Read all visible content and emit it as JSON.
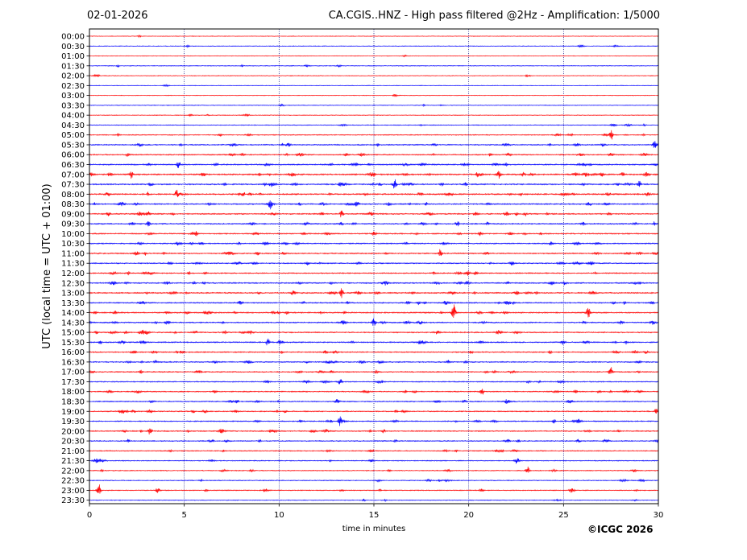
{
  "header": {
    "date": "02-01-2026",
    "title": "CA.CGIS..HNZ - High pass filtered @2Hz - Amplification: 1/5000"
  },
  "footer": {
    "copyright": "©ICGC 2026"
  },
  "colors": {
    "trace_a": "#ff0000",
    "trace_b": "#0000ff",
    "grid": "#000080",
    "axis": "#000000"
  },
  "chart_data": {
    "type": "line",
    "xlabel": "time in minutes",
    "ylabel": "UTC (local time = UTC + 01:00)",
    "xlim": [
      0,
      30
    ],
    "x_ticks": [
      0,
      5,
      10,
      15,
      20,
      25,
      30
    ],
    "x_tick_labels": [
      "0",
      "5",
      "10",
      "15",
      "20",
      "25",
      "30"
    ],
    "row_labels": [
      "00:00",
      "00:30",
      "01:00",
      "01:30",
      "02:00",
      "02:30",
      "03:00",
      "03:30",
      "04:00",
      "04:30",
      "05:00",
      "05:30",
      "06:00",
      "06:30",
      "07:00",
      "07:30",
      "08:00",
      "08:30",
      "09:00",
      "09:30",
      "10:00",
      "10:30",
      "11:00",
      "11:30",
      "12:00",
      "12:30",
      "13:00",
      "13:30",
      "14:00",
      "14:30",
      "15:00",
      "15:30",
      "16:00",
      "16:30",
      "17:00",
      "17:30",
      "18:00",
      "18:30",
      "19:00",
      "19:30",
      "20:00",
      "20:30",
      "21:00",
      "21:30",
      "22:00",
      "22:30",
      "23:00",
      "23:30"
    ],
    "trace_colors": [
      "red",
      "blue"
    ],
    "activity": [
      0.05,
      0.1,
      0.05,
      0.15,
      0.1,
      0.05,
      0.05,
      0.1,
      0.1,
      0.2,
      0.3,
      0.45,
      0.5,
      0.6,
      0.75,
      0.65,
      0.7,
      0.6,
      0.6,
      0.55,
      0.55,
      0.5,
      0.55,
      0.5,
      0.5,
      0.6,
      0.6,
      0.55,
      0.6,
      0.55,
      0.55,
      0.55,
      0.5,
      0.5,
      0.45,
      0.4,
      0.45,
      0.45,
      0.45,
      0.45,
      0.5,
      0.4,
      0.35,
      0.3,
      0.3,
      0.25,
      0.3,
      0.15
    ],
    "events": [
      {
        "row": 10,
        "minute": 27.5,
        "amp": 0.55
      },
      {
        "row": 11,
        "minute": 29.8,
        "amp": 0.35
      },
      {
        "row": 13,
        "minute": 4.7,
        "amp": 0.4
      },
      {
        "row": 14,
        "minute": 2.2,
        "amp": 0.35
      },
      {
        "row": 14,
        "minute": 6.0,
        "amp": 0.35
      },
      {
        "row": 14,
        "minute": 21.6,
        "amp": 0.4
      },
      {
        "row": 15,
        "minute": 16.1,
        "amp": 0.45
      },
      {
        "row": 15,
        "minute": 29.0,
        "amp": 0.35
      },
      {
        "row": 16,
        "minute": 4.6,
        "amp": 0.35
      },
      {
        "row": 17,
        "minute": 9.5,
        "amp": 0.4
      },
      {
        "row": 18,
        "minute": 13.3,
        "amp": 0.35
      },
      {
        "row": 19,
        "minute": 3.1,
        "amp": 0.4
      },
      {
        "row": 22,
        "minute": 18.5,
        "amp": 0.45
      },
      {
        "row": 26,
        "minute": 13.3,
        "amp": 0.45
      },
      {
        "row": 28,
        "minute": 19.2,
        "amp": 0.9
      },
      {
        "row": 28,
        "minute": 26.3,
        "amp": 0.8
      },
      {
        "row": 29,
        "minute": 15.0,
        "amp": 0.4
      },
      {
        "row": 31,
        "minute": 9.4,
        "amp": 0.35
      },
      {
        "row": 34,
        "minute": 27.5,
        "amp": 0.35
      },
      {
        "row": 36,
        "minute": 20.7,
        "amp": 0.3
      },
      {
        "row": 38,
        "minute": 29.9,
        "amp": 0.35
      },
      {
        "row": 39,
        "minute": 13.2,
        "amp": 0.4
      },
      {
        "row": 40,
        "minute": 3.2,
        "amp": 0.35
      },
      {
        "row": 44,
        "minute": 23.1,
        "amp": 0.4
      },
      {
        "row": 46,
        "minute": 0.5,
        "amp": 0.55
      },
      {
        "row": 46,
        "minute": 3.6,
        "amp": 0.35
      }
    ]
  }
}
